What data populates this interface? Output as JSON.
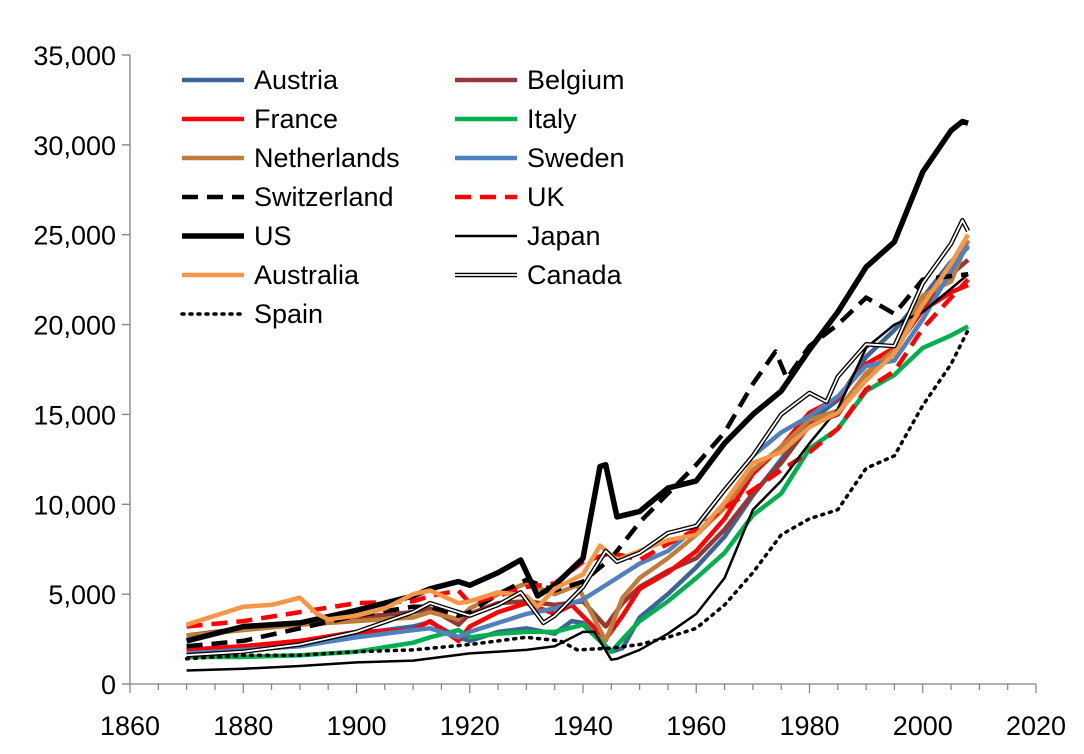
{
  "chart_data": {
    "type": "line",
    "title": "",
    "xlabel": "",
    "ylabel": "",
    "xlim": [
      1860,
      2020
    ],
    "ylim": [
      0,
      35000
    ],
    "x_ticks": [
      1860,
      1880,
      1900,
      1920,
      1940,
      1960,
      1980,
      2000,
      2020
    ],
    "x_tick_labels": [
      "1860",
      "1880",
      "1900",
      "1920",
      "1940",
      "1960",
      "1980",
      "2000",
      "2020"
    ],
    "y_ticks": [
      0,
      5000,
      10000,
      15000,
      20000,
      25000,
      30000,
      35000
    ],
    "y_tick_labels": [
      "0",
      "5,000",
      "10,000",
      "15,000",
      "20,000",
      "25,000",
      "30,000",
      "35,000"
    ],
    "grid": false,
    "legend_position": "top-left, two columns",
    "series": [
      {
        "name": "Austria",
        "color": "#3d6498",
        "style": "solid-thick",
        "x": [
          1870,
          1880,
          1890,
          1900,
          1910,
          1913,
          1918,
          1920,
          1925,
          1930,
          1935,
          1938,
          1940,
          1945,
          1947,
          1950,
          1955,
          1960,
          1965,
          1970,
          1975,
          1980,
          1985,
          1990,
          1995,
          2000,
          2005,
          2008
        ],
        "y": [
          1900,
          2100,
          2400,
          2800,
          3200,
          3450,
          2600,
          2400,
          2900,
          3100,
          2800,
          3500,
          3400,
          1800,
          2000,
          3700,
          5000,
          6500,
          8200,
          10500,
          12500,
          14600,
          15800,
          18200,
          19700,
          21500,
          23500,
          24300
        ]
      },
      {
        "name": "Belgium",
        "color": "#953735",
        "style": "solid-thick",
        "x": [
          1870,
          1880,
          1890,
          1900,
          1910,
          1913,
          1918,
          1920,
          1925,
          1930,
          1935,
          1940,
          1944,
          1947,
          1950,
          1955,
          1960,
          1965,
          1970,
          1975,
          1980,
          1985,
          1990,
          1995,
          2000,
          2005,
          2008
        ],
        "y": [
          2700,
          3100,
          3400,
          3700,
          4000,
          4200,
          3300,
          3900,
          4500,
          4600,
          4400,
          4600,
          3200,
          4500,
          5400,
          6300,
          7000,
          8600,
          10600,
          12300,
          14400,
          15000,
          17200,
          18600,
          20800,
          22800,
          23600
        ]
      },
      {
        "name": "France",
        "color": "#ff0000",
        "style": "solid-thick",
        "x": [
          1870,
          1880,
          1890,
          1900,
          1910,
          1913,
          1918,
          1920,
          1925,
          1930,
          1935,
          1938,
          1944,
          1947,
          1950,
          1955,
          1960,
          1965,
          1970,
          1975,
          1980,
          1985,
          1990,
          1995,
          2000,
          2005,
          2008
        ],
        "y": [
          1900,
          2100,
          2400,
          2900,
          3000,
          3500,
          2400,
          3200,
          4000,
          4500,
          3900,
          4400,
          2500,
          3800,
          5300,
          6200,
          7400,
          9200,
          11700,
          13200,
          15100,
          15900,
          17800,
          18700,
          20800,
          21800,
          22200
        ]
      },
      {
        "name": "Italy",
        "color": "#00b050",
        "style": "solid-thick",
        "x": [
          1870,
          1880,
          1890,
          1900,
          1910,
          1913,
          1918,
          1920,
          1925,
          1930,
          1935,
          1940,
          1945,
          1947,
          1950,
          1955,
          1960,
          1965,
          1970,
          1975,
          1980,
          1985,
          1990,
          1995,
          2000,
          2005,
          2008
        ],
        "y": [
          1500,
          1500,
          1600,
          1800,
          2300,
          2600,
          3000,
          2600,
          2800,
          2900,
          2900,
          3300,
          1800,
          2500,
          3500,
          4600,
          5900,
          7300,
          9400,
          10600,
          13100,
          14200,
          16300,
          17200,
          18700,
          19400,
          19900
        ]
      },
      {
        "name": "Netherlands",
        "color": "#c07d3a",
        "style": "solid-thick",
        "x": [
          1870,
          1880,
          1890,
          1900,
          1910,
          1913,
          1918,
          1920,
          1925,
          1930,
          1935,
          1939,
          1944,
          1947,
          1950,
          1955,
          1960,
          1965,
          1970,
          1975,
          1980,
          1985,
          1990,
          1995,
          2000,
          2005,
          2008
        ],
        "y": [
          2700,
          3000,
          3300,
          3500,
          3700,
          4000,
          3600,
          4200,
          5000,
          5600,
          5000,
          5500,
          2400,
          4800,
          5900,
          7000,
          8300,
          9800,
          11900,
          13200,
          14700,
          15200,
          17300,
          18600,
          21600,
          22400,
          24700
        ]
      },
      {
        "name": "Sweden",
        "color": "#4f81bd",
        "style": "solid-thick",
        "x": [
          1870,
          1880,
          1890,
          1900,
          1910,
          1913,
          1918,
          1920,
          1925,
          1930,
          1935,
          1940,
          1945,
          1950,
          1955,
          1960,
          1965,
          1970,
          1975,
          1980,
          1985,
          1990,
          1995,
          2000,
          2005,
          2008
        ],
        "y": [
          1700,
          1900,
          2100,
          2600,
          3000,
          3100,
          2600,
          2900,
          3400,
          3900,
          4200,
          4700,
          5700,
          6700,
          7400,
          8700,
          10800,
          12700,
          14000,
          14900,
          16000,
          17700,
          18000,
          20300,
          23000,
          24400
        ]
      },
      {
        "name": "Switzerland",
        "color": "#000000",
        "style": "dashed",
        "x": [
          1870,
          1880,
          1890,
          1900,
          1910,
          1913,
          1918,
          1920,
          1925,
          1930,
          1935,
          1940,
          1945,
          1950,
          1955,
          1960,
          1965,
          1970,
          1974,
          1976,
          1980,
          1985,
          1990,
          1995,
          2000,
          2005,
          2008
        ],
        "y": [
          2100,
          2400,
          3100,
          3800,
          4300,
          4300,
          3800,
          4000,
          5000,
          5800,
          5200,
          5700,
          7000,
          9000,
          10600,
          12200,
          14000,
          16700,
          18500,
          17000,
          18800,
          20000,
          21500,
          20600,
          22500,
          22700,
          22800
        ]
      },
      {
        "name": "UK",
        "color": "#ff0000",
        "style": "dashed",
        "x": [
          1870,
          1880,
          1890,
          1900,
          1910,
          1913,
          1918,
          1920,
          1925,
          1930,
          1935,
          1940,
          1945,
          1950,
          1955,
          1960,
          1965,
          1970,
          1975,
          1980,
          1985,
          1990,
          1995,
          2000,
          2005,
          2008
        ],
        "y": [
          3200,
          3500,
          4000,
          4500,
          4600,
          4900,
          5200,
          4500,
          4900,
          5400,
          5600,
          6800,
          7300,
          6900,
          7800,
          8600,
          9800,
          10800,
          11900,
          12900,
          14200,
          16400,
          17400,
          19800,
          21500,
          22500
        ]
      },
      {
        "name": "US",
        "color": "#000000",
        "style": "solid-heavy",
        "x": [
          1870,
          1880,
          1890,
          1900,
          1910,
          1913,
          1918,
          1920,
          1925,
          1929,
          1932,
          1935,
          1940,
          1943,
          1944,
          1946,
          1950,
          1955,
          1960,
          1965,
          1970,
          1975,
          1980,
          1985,
          1990,
          1995,
          2000,
          2005,
          2007,
          2008
        ],
        "y": [
          2400,
          3200,
          3400,
          4100,
          4900,
          5300,
          5700,
          5500,
          6200,
          6900,
          4900,
          5500,
          7000,
          12100,
          12200,
          9300,
          9600,
          10900,
          11300,
          13400,
          15000,
          16300,
          18600,
          20700,
          23200,
          24600,
          28500,
          30800,
          31300,
          31200
        ]
      },
      {
        "name": "Japan",
        "color": "#000000",
        "style": "solid-thin",
        "x": [
          1870,
          1880,
          1890,
          1900,
          1910,
          1920,
          1930,
          1935,
          1940,
          1942,
          1945,
          1946,
          1950,
          1955,
          1960,
          1965,
          1970,
          1975,
          1980,
          1985,
          1990,
          1995,
          2000,
          2005,
          2008
        ],
        "y": [
          750,
          850,
          1000,
          1200,
          1300,
          1700,
          1900,
          2100,
          2900,
          2900,
          1350,
          1400,
          1900,
          2800,
          3900,
          5900,
          9700,
          11300,
          13400,
          15300,
          18700,
          20000,
          20700,
          22000,
          22800
        ]
      },
      {
        "name": "Australia",
        "color": "#f79646",
        "style": "solid-thick",
        "x": [
          1870,
          1875,
          1880,
          1885,
          1890,
          1893,
          1895,
          1900,
          1905,
          1910,
          1913,
          1918,
          1920,
          1925,
          1930,
          1932,
          1935,
          1940,
          1943,
          1946,
          1950,
          1955,
          1960,
          1965,
          1970,
          1975,
          1980,
          1985,
          1990,
          1995,
          2000,
          2005,
          2008
        ],
        "y": [
          3300,
          3800,
          4300,
          4400,
          4800,
          3900,
          3600,
          3800,
          4200,
          5000,
          5200,
          4500,
          4600,
          5100,
          4900,
          4300,
          5300,
          6100,
          7700,
          6900,
          7400,
          8000,
          8300,
          10100,
          12300,
          12900,
          14300,
          15100,
          16900,
          18400,
          21100,
          23400,
          25000
        ]
      },
      {
        "name": "Canada",
        "color": "#000000",
        "style": "double",
        "x": [
          1870,
          1880,
          1890,
          1900,
          1910,
          1913,
          1918,
          1920,
          1925,
          1929,
          1933,
          1935,
          1940,
          1944,
          1946,
          1950,
          1955,
          1960,
          1965,
          1970,
          1975,
          1980,
          1983,
          1985,
          1990,
          1995,
          2000,
          2005,
          2007,
          2008
        ],
        "y": [
          1600,
          1800,
          2200,
          2900,
          4000,
          4500,
          4000,
          3800,
          4400,
          5100,
          3400,
          3800,
          5400,
          7400,
          6800,
          7300,
          8400,
          8800,
          10800,
          12700,
          15000,
          16200,
          15700,
          17100,
          18900,
          18800,
          22300,
          24500,
          25800,
          25200
        ]
      },
      {
        "name": "Spain",
        "color": "#000000",
        "style": "dotted",
        "x": [
          1870,
          1880,
          1890,
          1900,
          1910,
          1920,
          1930,
          1936,
          1939,
          1945,
          1950,
          1955,
          1960,
          1965,
          1970,
          1975,
          1980,
          1985,
          1990,
          1995,
          2000,
          2005,
          2008
        ],
        "y": [
          1400,
          1600,
          1600,
          1800,
          1900,
          2200,
          2600,
          2400,
          1900,
          2000,
          2200,
          2600,
          3100,
          4400,
          6200,
          8300,
          9200,
          9700,
          12000,
          12700,
          15500,
          17800,
          19700
        ]
      }
    ]
  }
}
